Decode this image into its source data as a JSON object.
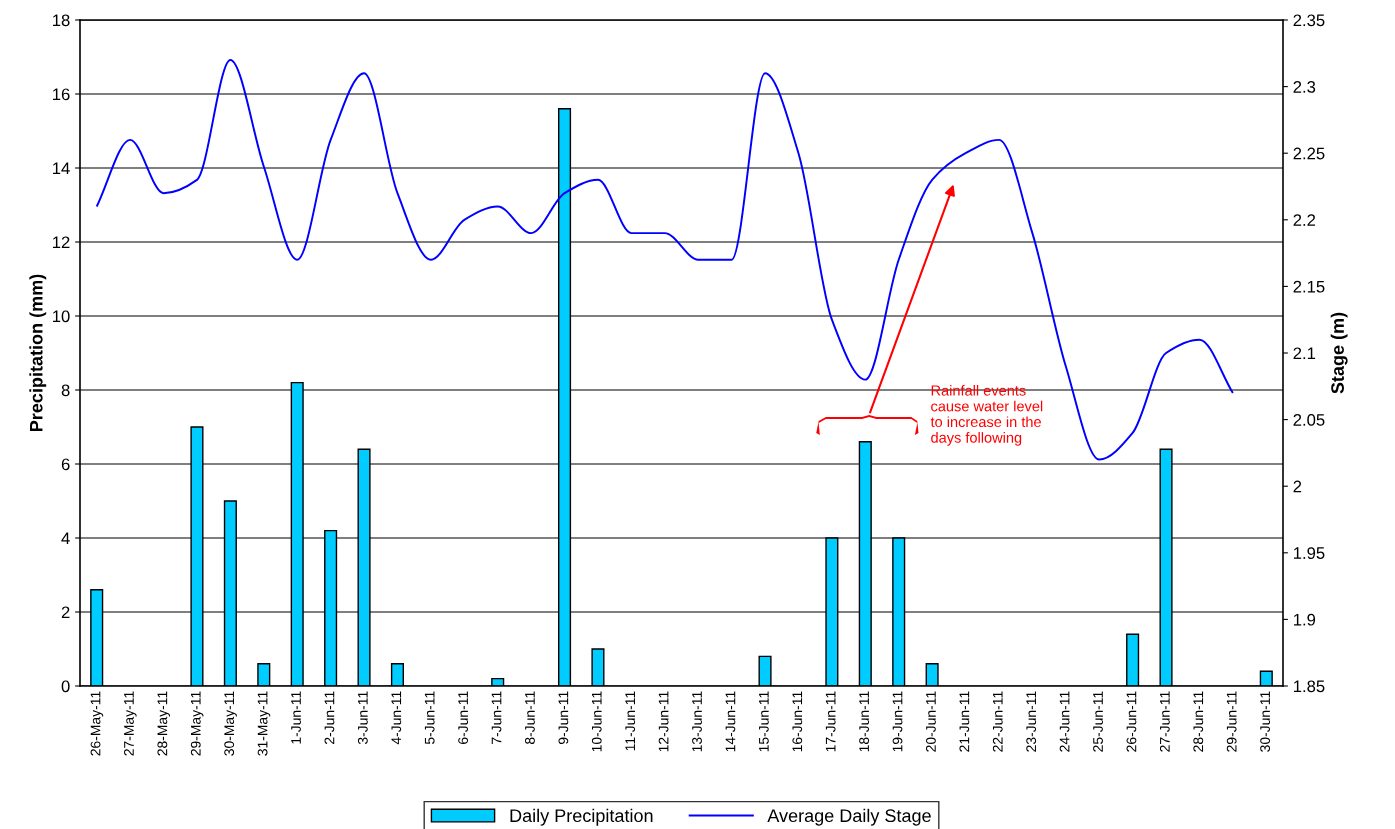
{
  "chart_data": {
    "type": "bar",
    "categories": [
      "26-May-11",
      "27-May-11",
      "28-May-11",
      "29-May-11",
      "30-May-11",
      "31-May-11",
      "1-Jun-11",
      "2-Jun-11",
      "3-Jun-11",
      "4-Jun-11",
      "5-Jun-11",
      "6-Jun-11",
      "7-Jun-11",
      "8-Jun-11",
      "9-Jun-11",
      "10-Jun-11",
      "11-Jun-11",
      "12-Jun-11",
      "13-Jun-11",
      "14-Jun-11",
      "15-Jun-11",
      "16-Jun-11",
      "17-Jun-11",
      "18-Jun-11",
      "19-Jun-11",
      "20-Jun-11",
      "21-Jun-11",
      "22-Jun-11",
      "23-Jun-11",
      "24-Jun-11",
      "25-Jun-11",
      "26-Jun-11",
      "27-Jun-11",
      "28-Jun-11",
      "29-Jun-11",
      "30-Jun-11"
    ],
    "series": [
      {
        "name": "Daily Precipitation",
        "color": "#00ccff",
        "values": [
          2.6,
          0,
          0,
          7,
          5,
          0.6,
          8.2,
          4.2,
          6.4,
          0.6,
          0,
          0,
          0.2,
          0,
          15.6,
          1,
          0,
          0,
          0,
          0,
          0.8,
          0,
          4,
          6.6,
          4,
          0.6,
          0,
          0,
          0,
          0,
          0,
          1.4,
          6.4,
          0,
          0,
          0.4
        ]
      },
      {
        "name": "Average Daily Stage",
        "type": "line",
        "axis": "y2",
        "color": "#0000ff",
        "values": [
          2.21,
          2.26,
          2.22,
          2.23,
          2.32,
          2.24,
          2.17,
          2.26,
          2.31,
          2.22,
          2.17,
          2.2,
          2.21,
          2.19,
          2.22,
          2.23,
          2.19,
          2.19,
          2.17,
          2.17,
          2.31,
          2.25,
          2.125,
          2.08,
          2.17,
          2.23,
          2.25,
          2.26,
          2.19,
          2.09,
          2.02,
          2.04,
          2.1,
          2.11,
          2.07,
          null
        ]
      }
    ],
    "ylabel": "Precipitation (mm)",
    "y2label": "Stage (m)",
    "ylim": [
      0,
      18
    ],
    "yticks": [
      0,
      2,
      4,
      6,
      8,
      10,
      12,
      14,
      16,
      18
    ],
    "y2lim": [
      1.85,
      2.35
    ],
    "y2ticks": [
      1.85,
      1.9,
      1.95,
      2,
      2.05,
      2.1,
      2.15,
      2.2,
      2.25,
      2.3,
      2.35
    ],
    "annotations": [
      "Rainfall events\ncause water level\nto increase in the\ndays following"
    ],
    "grid": true,
    "legend": "bottom",
    "line_style": "solid",
    "marker": "none"
  }
}
